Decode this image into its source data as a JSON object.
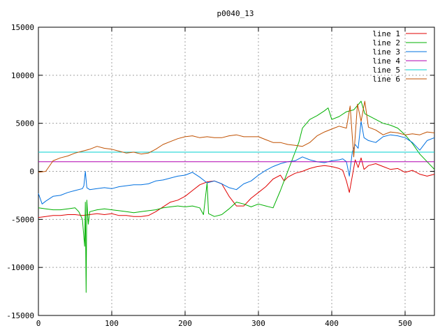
{
  "chart_data": {
    "type": "line",
    "title": "p0040_13",
    "xlabel": "",
    "ylabel": "",
    "xlim": [
      0,
      540
    ],
    "ylim": [
      -15000,
      15000
    ],
    "xticks": [
      0,
      100,
      200,
      300,
      400,
      500
    ],
    "yticks": [
      -15000,
      -10000,
      -5000,
      0,
      5000,
      10000,
      15000
    ],
    "grid": true,
    "legend_position": "top-right",
    "series": [
      {
        "name": "line 1",
        "color": "#e00000",
        "points": [
          [
            0,
            -4800
          ],
          [
            10,
            -4700
          ],
          [
            20,
            -4600
          ],
          [
            30,
            -4600
          ],
          [
            40,
            -4500
          ],
          [
            50,
            -4500
          ],
          [
            60,
            -4600
          ],
          [
            70,
            -4500
          ],
          [
            80,
            -4400
          ],
          [
            90,
            -4500
          ],
          [
            100,
            -4400
          ],
          [
            110,
            -4600
          ],
          [
            120,
            -4600
          ],
          [
            130,
            -4700
          ],
          [
            140,
            -4700
          ],
          [
            150,
            -4600
          ],
          [
            160,
            -4200
          ],
          [
            170,
            -3700
          ],
          [
            180,
            -3200
          ],
          [
            190,
            -3000
          ],
          [
            200,
            -2600
          ],
          [
            210,
            -2000
          ],
          [
            220,
            -1400
          ],
          [
            230,
            -1100
          ],
          [
            240,
            -1000
          ],
          [
            250,
            -1300
          ],
          [
            260,
            -2600
          ],
          [
            270,
            -3600
          ],
          [
            280,
            -3600
          ],
          [
            290,
            -2800
          ],
          [
            300,
            -2200
          ],
          [
            310,
            -1600
          ],
          [
            320,
            -800
          ],
          [
            330,
            -400
          ],
          [
            335,
            -1000
          ],
          [
            340,
            -600
          ],
          [
            350,
            -200
          ],
          [
            360,
            0
          ],
          [
            370,
            300
          ],
          [
            380,
            500
          ],
          [
            390,
            600
          ],
          [
            400,
            500
          ],
          [
            410,
            300
          ],
          [
            415,
            100
          ],
          [
            420,
            -1000
          ],
          [
            424,
            -2200
          ],
          [
            428,
            -500
          ],
          [
            432,
            1200
          ],
          [
            436,
            400
          ],
          [
            440,
            1400
          ],
          [
            444,
            200
          ],
          [
            450,
            600
          ],
          [
            460,
            800
          ],
          [
            470,
            500
          ],
          [
            480,
            200
          ],
          [
            490,
            300
          ],
          [
            500,
            -100
          ],
          [
            510,
            100
          ],
          [
            520,
            -300
          ],
          [
            530,
            -500
          ],
          [
            540,
            -300
          ]
        ]
      },
      {
        "name": "line 2",
        "color": "#00b000",
        "points": [
          [
            0,
            -3800
          ],
          [
            10,
            -3900
          ],
          [
            20,
            -4000
          ],
          [
            30,
            -4000
          ],
          [
            40,
            -3900
          ],
          [
            50,
            -3800
          ],
          [
            55,
            -4200
          ],
          [
            60,
            -5000
          ],
          [
            63,
            -7800
          ],
          [
            64,
            -3200
          ],
          [
            65,
            -12600
          ],
          [
            66,
            -3000
          ],
          [
            68,
            -5500
          ],
          [
            70,
            -4200
          ],
          [
            80,
            -4000
          ],
          [
            90,
            -3900
          ],
          [
            100,
            -4000
          ],
          [
            110,
            -4100
          ],
          [
            120,
            -4200
          ],
          [
            130,
            -4300
          ],
          [
            140,
            -4200
          ],
          [
            150,
            -4100
          ],
          [
            160,
            -4000
          ],
          [
            170,
            -3800
          ],
          [
            180,
            -3700
          ],
          [
            190,
            -3600
          ],
          [
            200,
            -3700
          ],
          [
            210,
            -3600
          ],
          [
            220,
            -3800
          ],
          [
            225,
            -4500
          ],
          [
            230,
            -1200
          ],
          [
            232,
            -4400
          ],
          [
            240,
            -4700
          ],
          [
            250,
            -4500
          ],
          [
            260,
            -3900
          ],
          [
            270,
            -3200
          ],
          [
            280,
            -3400
          ],
          [
            290,
            -3700
          ],
          [
            300,
            -3400
          ],
          [
            310,
            -3600
          ],
          [
            320,
            -3800
          ],
          [
            330,
            -2000
          ],
          [
            340,
            0
          ],
          [
            350,
            2000
          ],
          [
            355,
            3000
          ],
          [
            360,
            4500
          ],
          [
            370,
            5400
          ],
          [
            380,
            5800
          ],
          [
            390,
            6300
          ],
          [
            395,
            6600
          ],
          [
            400,
            5400
          ],
          [
            410,
            5700
          ],
          [
            420,
            6200
          ],
          [
            430,
            6400
          ],
          [
            440,
            7300
          ],
          [
            445,
            6000
          ],
          [
            450,
            5800
          ],
          [
            460,
            5400
          ],
          [
            470,
            5000
          ],
          [
            480,
            4800
          ],
          [
            490,
            4500
          ],
          [
            500,
            3800
          ],
          [
            510,
            2900
          ],
          [
            520,
            1800
          ],
          [
            530,
            1000
          ],
          [
            540,
            200
          ]
        ]
      },
      {
        "name": "line 3",
        "color": "#0070e0",
        "points": [
          [
            0,
            -2300
          ],
          [
            5,
            -3400
          ],
          [
            10,
            -3100
          ],
          [
            20,
            -2600
          ],
          [
            30,
            -2500
          ],
          [
            40,
            -2200
          ],
          [
            50,
            -2000
          ],
          [
            60,
            -1800
          ],
          [
            62,
            -1500
          ],
          [
            64,
            0
          ],
          [
            66,
            -1700
          ],
          [
            70,
            -1900
          ],
          [
            80,
            -1800
          ],
          [
            90,
            -1700
          ],
          [
            100,
            -1800
          ],
          [
            110,
            -1600
          ],
          [
            120,
            -1500
          ],
          [
            130,
            -1400
          ],
          [
            140,
            -1400
          ],
          [
            150,
            -1300
          ],
          [
            160,
            -1000
          ],
          [
            170,
            -900
          ],
          [
            180,
            -700
          ],
          [
            190,
            -500
          ],
          [
            200,
            -400
          ],
          [
            210,
            -100
          ],
          [
            220,
            -600
          ],
          [
            230,
            -1200
          ],
          [
            240,
            -1000
          ],
          [
            250,
            -1300
          ],
          [
            260,
            -1700
          ],
          [
            270,
            -1900
          ],
          [
            280,
            -1300
          ],
          [
            290,
            -1000
          ],
          [
            300,
            -400
          ],
          [
            310,
            100
          ],
          [
            320,
            500
          ],
          [
            330,
            800
          ],
          [
            340,
            1000
          ],
          [
            350,
            1100
          ],
          [
            360,
            1500
          ],
          [
            370,
            1200
          ],
          [
            380,
            1000
          ],
          [
            390,
            900
          ],
          [
            400,
            1100
          ],
          [
            410,
            1200
          ],
          [
            415,
            1300
          ],
          [
            420,
            1000
          ],
          [
            424,
            -500
          ],
          [
            428,
            2000
          ],
          [
            432,
            2800
          ],
          [
            436,
            2400
          ],
          [
            440,
            5200
          ],
          [
            444,
            3500
          ],
          [
            450,
            3200
          ],
          [
            460,
            3000
          ],
          [
            470,
            3600
          ],
          [
            480,
            3800
          ],
          [
            490,
            3700
          ],
          [
            500,
            3500
          ],
          [
            510,
            3000
          ],
          [
            520,
            2200
          ],
          [
            530,
            3200
          ],
          [
            540,
            3500
          ]
        ]
      },
      {
        "name": "line 4",
        "color": "#b000b0",
        "points": [
          [
            0,
            1000
          ],
          [
            50,
            1000
          ],
          [
            100,
            1000
          ],
          [
            150,
            1000
          ],
          [
            200,
            1000
          ],
          [
            250,
            1000
          ],
          [
            300,
            1000
          ],
          [
            350,
            1000
          ],
          [
            400,
            1000
          ],
          [
            450,
            1000
          ],
          [
            500,
            1000
          ],
          [
            540,
            1000
          ]
        ]
      },
      {
        "name": "line 5",
        "color": "#00d0d0",
        "points": [
          [
            0,
            2000
          ],
          [
            50,
            2000
          ],
          [
            100,
            2000
          ],
          [
            150,
            2000
          ],
          [
            200,
            2000
          ],
          [
            250,
            2000
          ],
          [
            300,
            2000
          ],
          [
            350,
            2000
          ],
          [
            400,
            2000
          ],
          [
            450,
            2000
          ],
          [
            500,
            2000
          ],
          [
            540,
            2000
          ]
        ]
      },
      {
        "name": "line 6",
        "color": "#c05000",
        "points": [
          [
            0,
            -100
          ],
          [
            10,
            0
          ],
          [
            20,
            1100
          ],
          [
            30,
            1400
          ],
          [
            40,
            1600
          ],
          [
            50,
            1900
          ],
          [
            60,
            2100
          ],
          [
            70,
            2300
          ],
          [
            80,
            2600
          ],
          [
            90,
            2400
          ],
          [
            100,
            2300
          ],
          [
            110,
            2100
          ],
          [
            120,
            1900
          ],
          [
            130,
            2000
          ],
          [
            140,
            1800
          ],
          [
            150,
            1900
          ],
          [
            160,
            2300
          ],
          [
            170,
            2800
          ],
          [
            180,
            3100
          ],
          [
            190,
            3400
          ],
          [
            200,
            3600
          ],
          [
            210,
            3700
          ],
          [
            220,
            3500
          ],
          [
            230,
            3600
          ],
          [
            240,
            3500
          ],
          [
            250,
            3500
          ],
          [
            260,
            3700
          ],
          [
            270,
            3800
          ],
          [
            280,
            3600
          ],
          [
            290,
            3600
          ],
          [
            300,
            3600
          ],
          [
            310,
            3300
          ],
          [
            320,
            3000
          ],
          [
            330,
            3000
          ],
          [
            340,
            2800
          ],
          [
            350,
            2700
          ],
          [
            360,
            2600
          ],
          [
            370,
            3000
          ],
          [
            380,
            3700
          ],
          [
            390,
            4100
          ],
          [
            400,
            4400
          ],
          [
            410,
            4700
          ],
          [
            420,
            4500
          ],
          [
            425,
            6800
          ],
          [
            430,
            1500
          ],
          [
            435,
            7000
          ],
          [
            440,
            5200
          ],
          [
            445,
            7300
          ],
          [
            450,
            4600
          ],
          [
            460,
            4300
          ],
          [
            470,
            3800
          ],
          [
            480,
            4100
          ],
          [
            490,
            4000
          ],
          [
            500,
            3800
          ],
          [
            510,
            3900
          ],
          [
            520,
            3800
          ],
          [
            530,
            4100
          ],
          [
            540,
            4000
          ]
        ]
      }
    ]
  }
}
